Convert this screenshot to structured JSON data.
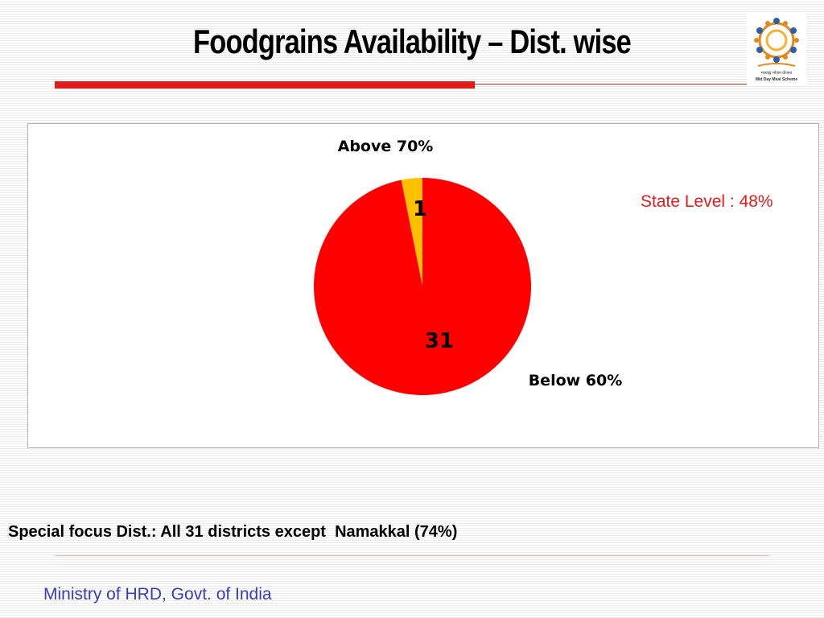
{
  "slide": {
    "title": "Foodgrains Availability – Dist. wise",
    "state_level": "State Level : 48%",
    "focus_text": "Special focus Dist.: All 31 districts except  Namakkal (74%)",
    "footer": "Ministry of HRD, Govt. of India"
  },
  "logo": {
    "icon": "mid-day-meal-scheme-logo",
    "caption_hindi": "मध्याह्न भोजन योजना",
    "caption_english": "Mid Day Meal Scheme"
  },
  "colors": {
    "accent_red": "#e31b1b",
    "footer_blue": "#3b3bb5"
  },
  "chart_data": {
    "type": "pie",
    "title": "",
    "legend": "none",
    "slices": [
      {
        "label": "Above 70%",
        "value": 1,
        "color": "#ffc000"
      },
      {
        "label": "Below 60%",
        "value": 31,
        "color": "#ff0000"
      }
    ]
  }
}
